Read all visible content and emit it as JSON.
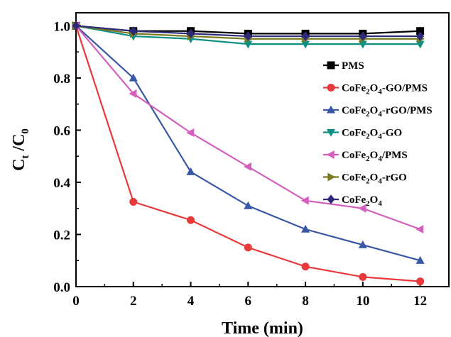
{
  "chart_data": {
    "type": "line",
    "xlabel": "Time (min)",
    "ylabel": {
      "main": "C",
      "sub1": "t",
      "sep": " /C",
      "sub2": "0"
    },
    "xlim": [
      0,
      13
    ],
    "ylim": [
      0,
      1.05
    ],
    "xticks": [
      0,
      2,
      4,
      6,
      8,
      10,
      12
    ],
    "xtick_labels": [
      "0",
      "2",
      "4",
      "6",
      "8",
      "10",
      "12"
    ],
    "yticks": [
      0.0,
      0.2,
      0.4,
      0.6,
      0.8,
      1.0
    ],
    "ytick_labels": [
      "0.0",
      "0.2",
      "0.4",
      "0.6",
      "0.8",
      "1.0"
    ],
    "grid": false,
    "legend_position": "right",
    "x": [
      0,
      2,
      4,
      6,
      8,
      10,
      12
    ],
    "series": [
      {
        "name": "PMS",
        "label_parts": [
          [
            "PMS",
            ""
          ]
        ],
        "color": "#000000",
        "marker": "square",
        "values": [
          1.0,
          0.98,
          0.98,
          0.97,
          0.97,
          0.97,
          0.98
        ]
      },
      {
        "name": "CoFe2O4-GO/PMS",
        "label_parts": [
          [
            "CoFe",
            ""
          ],
          [
            "2",
            "sub"
          ],
          [
            "O",
            ""
          ],
          [
            "4",
            "sub"
          ],
          [
            "-GO/PMS",
            ""
          ]
        ],
        "color": "#e8393b",
        "marker": "circle",
        "values": [
          1.0,
          0.325,
          0.255,
          0.15,
          0.077,
          0.037,
          0.02
        ]
      },
      {
        "name": "CoFe2O4-rGO/PMS",
        "label_parts": [
          [
            "CoFe",
            ""
          ],
          [
            "2",
            "sub"
          ],
          [
            "O",
            ""
          ],
          [
            "4",
            "sub"
          ],
          [
            "-rGO/PMS",
            ""
          ]
        ],
        "color": "#3a57a6",
        "marker": "triangle-up",
        "values": [
          1.0,
          0.8,
          0.44,
          0.31,
          0.22,
          0.16,
          0.1
        ]
      },
      {
        "name": "CoFe2O4-GO",
        "label_parts": [
          [
            "CoFe",
            ""
          ],
          [
            "2",
            "sub"
          ],
          [
            "O",
            ""
          ],
          [
            "4",
            "sub"
          ],
          [
            "-GO",
            ""
          ]
        ],
        "color": "#0d8f84",
        "marker": "triangle-down",
        "values": [
          1.0,
          0.96,
          0.95,
          0.93,
          0.93,
          0.93,
          0.93
        ]
      },
      {
        "name": "CoFe2O4/PMS",
        "label_parts": [
          [
            "CoFe",
            ""
          ],
          [
            "2",
            "sub"
          ],
          [
            "O",
            ""
          ],
          [
            "4",
            "sub"
          ],
          [
            "/PMS",
            ""
          ]
        ],
        "color": "#d55fbd",
        "marker": "triangle-left",
        "values": [
          1.0,
          0.74,
          0.59,
          0.46,
          0.33,
          0.3,
          0.22
        ]
      },
      {
        "name": "CoFe2O4-rGO",
        "label_parts": [
          [
            "CoFe",
            ""
          ],
          [
            "2",
            "sub"
          ],
          [
            "O",
            ""
          ],
          [
            "4",
            "sub"
          ],
          [
            "-rGO",
            ""
          ]
        ],
        "color": "#7a7a1e",
        "marker": "triangle-right",
        "values": [
          1.0,
          0.97,
          0.96,
          0.95,
          0.95,
          0.95,
          0.95
        ]
      },
      {
        "name": "CoFe2O4",
        "label_parts": [
          [
            "CoFe",
            ""
          ],
          [
            "2",
            "sub"
          ],
          [
            "O",
            ""
          ],
          [
            "4",
            "sub"
          ]
        ],
        "color": "#2e2a7a",
        "marker": "diamond",
        "values": [
          1.0,
          0.98,
          0.97,
          0.96,
          0.96,
          0.96,
          0.96
        ]
      }
    ]
  }
}
